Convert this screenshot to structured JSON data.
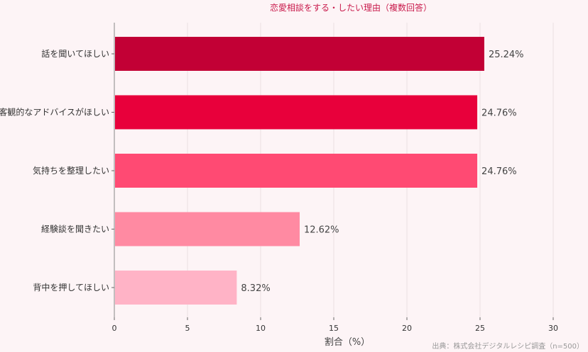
{
  "chart_data": {
    "type": "bar",
    "orientation": "horizontal",
    "title": "恋愛相談をする・したい理由（複数回答）",
    "categories": [
      "話を聞いてほしい",
      "客観的なアドバイスがほしい",
      "気持ちを整理したい",
      "経験談を聞きたい",
      "背中を押してほしい"
    ],
    "values": [
      25.24,
      24.76,
      24.76,
      12.62,
      8.32
    ],
    "data_labels": [
      "25.24%",
      "24.76%",
      "24.76%",
      "12.62%",
      "8.32%"
    ],
    "colors": [
      "#c20035",
      "#e8003b",
      "#ff4a73",
      "#ff8aa2",
      "#ffb3c6"
    ],
    "xlabel": "割合（%）",
    "xlim": [
      0,
      32
    ],
    "xticks": [
      0,
      5,
      10,
      15,
      20,
      25,
      30
    ],
    "grid": "vertical",
    "source": "出典：株式会社デジタルレシピ調査（n=500）"
  }
}
